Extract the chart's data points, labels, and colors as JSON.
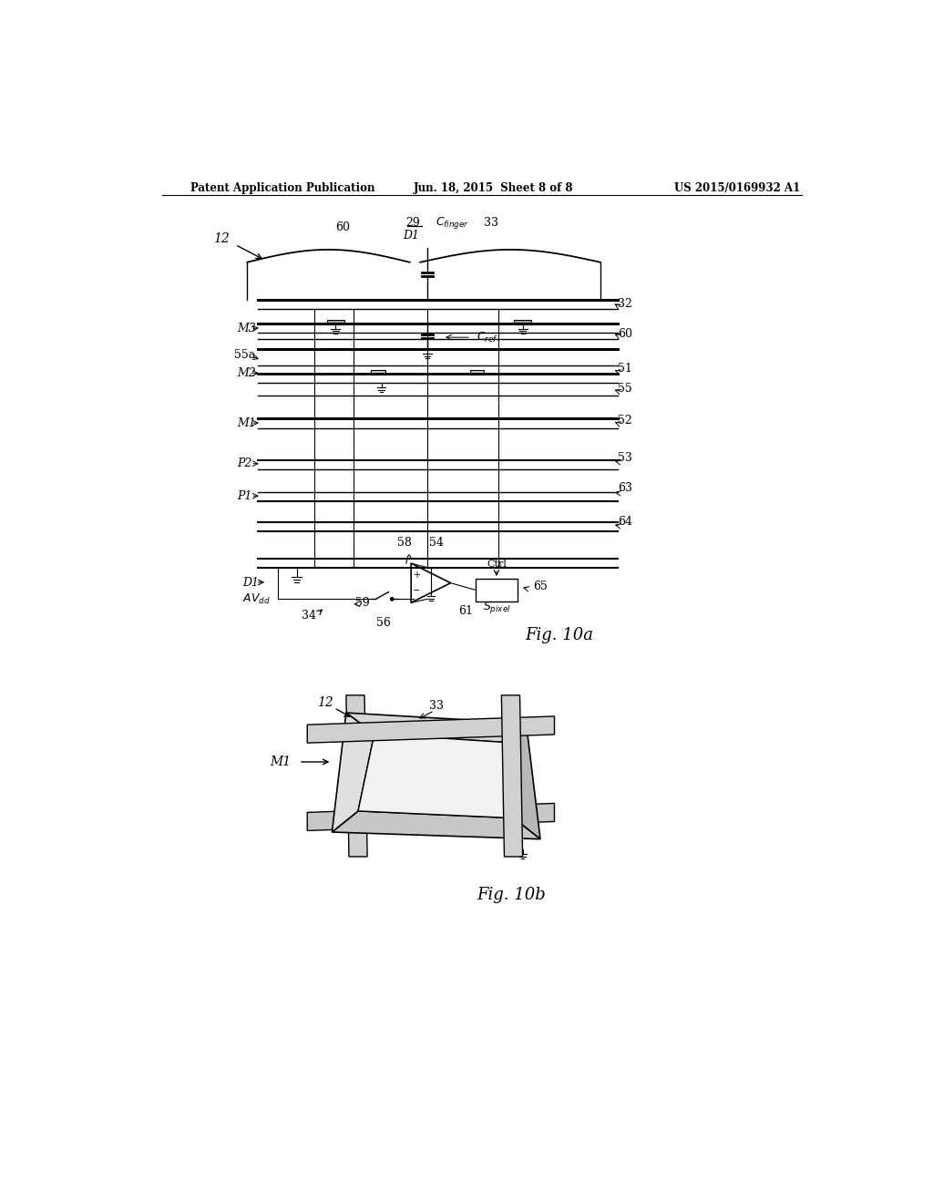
{
  "background_color": "#ffffff",
  "header_left": "Patent Application Publication",
  "header_center": "Jun. 18, 2015  Sheet 8 of 8",
  "header_right": "US 2015/0169932 A1",
  "fig10a_label": "Fig. 10a",
  "fig10b_label": "Fig. 10b"
}
